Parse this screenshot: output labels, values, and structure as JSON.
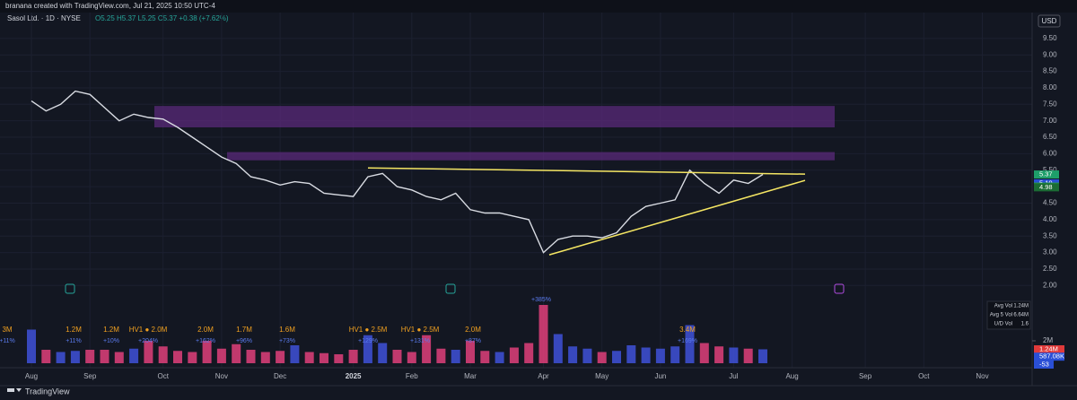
{
  "header": "branana created with TradingView.com, Jul 21, 2025 10:50 UTC-4",
  "currency": "USD",
  "footer": "TradingView",
  "chart_data": {
    "type": "line",
    "title": "Sasol Ltd. · 1D · NYSE",
    "subtitle": "O5.25 H5.37 L5.25 C5.37 +0.38 (+7.62%)",
    "categories": [
      "Aug",
      null,
      null,
      null,
      "Sep",
      null,
      null,
      null,
      null,
      "Oct",
      null,
      null,
      null,
      "Nov",
      null,
      null,
      null,
      "Dec",
      null,
      null,
      null,
      null,
      "2025",
      null,
      null,
      null,
      "Feb",
      null,
      null,
      null,
      "Mar",
      null,
      null,
      null,
      null,
      "Apr",
      null,
      null,
      null,
      "May",
      null,
      null,
      null,
      "Jun",
      null,
      null,
      null,
      null,
      "Jul",
      null,
      null,
      null,
      "Aug",
      null,
      null,
      null,
      null,
      "Sep",
      null,
      null,
      null,
      "Oct",
      null,
      null,
      null,
      "Nov",
      null
    ],
    "series": [
      {
        "color": "#d9dce3",
        "values": [
          7.6,
          7.3,
          7.5,
          7.9,
          7.8,
          7.4,
          7.0,
          7.2,
          7.1,
          7.05,
          6.8,
          6.5,
          6.2,
          5.9,
          5.7,
          5.3,
          5.2,
          5.05,
          5.15,
          5.1,
          4.8,
          4.75,
          4.7,
          5.3,
          5.4,
          5.0,
          4.9,
          4.7,
          4.6,
          4.8,
          4.3,
          4.2,
          4.2,
          4.1,
          4.0,
          3.0,
          3.4,
          3.5,
          3.5,
          3.45,
          3.6,
          4.1,
          4.4,
          4.5,
          4.6,
          5.5,
          5.1,
          4.8,
          5.2,
          5.1,
          5.37,
          null,
          null,
          null,
          null,
          null,
          null,
          null,
          null,
          null,
          null,
          null,
          null,
          null,
          null,
          null,
          null
        ]
      }
    ],
    "ylim": [
      1.6,
      9.85
    ],
    "yticks": [
      {
        "value": 2,
        "label": "2.00"
      },
      {
        "value": 2.5,
        "label": "2.50"
      },
      {
        "value": 3,
        "label": "3.00"
      },
      {
        "value": 3.5,
        "label": "3.50"
      },
      {
        "value": 4,
        "label": "4.00"
      },
      {
        "value": 4.5,
        "label": "4.50"
      },
      {
        "value": 5,
        "label": "5.00"
      },
      {
        "value": 5.5,
        "label": "5.50"
      },
      {
        "value": 6,
        "label": "6.00"
      },
      {
        "value": 6.5,
        "label": "6.50"
      },
      {
        "value": 7,
        "label": "7.00"
      },
      {
        "value": 7.5,
        "label": "7.50"
      },
      {
        "value": 8,
        "label": "8.00"
      },
      {
        "value": 8.5,
        "label": "8.50"
      },
      {
        "value": 9,
        "label": "9.00"
      },
      {
        "value": 9.5,
        "label": "9.50"
      }
    ],
    "grid": true,
    "zones": [
      {
        "values": [
          6.8,
          7.45
        ],
        "color": "#5a2a7a"
      },
      {
        "values": [
          5.8,
          6.05
        ],
        "color": "#5a2a7a"
      }
    ],
    "trendlines": [
      {
        "values": [
          5.57,
          5.38
        ],
        "color": "#f5e663"
      },
      {
        "values": [
          2.93,
          5.19
        ],
        "color": "#f5e663"
      }
    ],
    "price_tags": [
      {
        "value": 5.37,
        "label": "5.37",
        "color": "#1e9e6a"
      },
      {
        "value": 5.1,
        "label": "5.10",
        "color": "#2a4fd6"
      },
      {
        "value": 5.0,
        "label": "5.00",
        "color": "#27a844"
      },
      {
        "value": 4.98,
        "label": "4.98",
        "color": "#1b6b34"
      }
    ],
    "volume": {
      "values": [
        3.0,
        1.2,
        1.0,
        1.1,
        1.2,
        1.2,
        1.0,
        1.3,
        2.0,
        1.5,
        1.1,
        1.0,
        2.0,
        1.3,
        1.7,
        1.2,
        1.0,
        1.1,
        1.6,
        1.0,
        0.9,
        0.8,
        1.2,
        2.5,
        1.8,
        1.2,
        1.0,
        2.5,
        1.3,
        1.2,
        2.0,
        1.1,
        1.0,
        1.4,
        1.8,
        5.2,
        2.6,
        1.5,
        1.3,
        1.0,
        1.1,
        1.6,
        1.4,
        1.3,
        1.5,
        3.4,
        1.8,
        1.5,
        1.4,
        1.3,
        1.24,
        null,
        null,
        null,
        null,
        null,
        null,
        null,
        null,
        null,
        null,
        null,
        null,
        null,
        null,
        null,
        null
      ],
      "up_color": "#3f51d8",
      "down_color": "#e0407a",
      "ylim": [
        0,
        6
      ],
      "yticks": [
        {
          "value": 2,
          "label": "2M"
        }
      ],
      "tags": [
        {
          "value": 1.24,
          "label": "1.24M",
          "color": "#e03a3a"
        },
        {
          "value": 0.58708,
          "label": "587.08K",
          "color": "#2a4fd6"
        }
      ],
      "osc_tag": "-53",
      "annotations": [
        {
          "text": "3M",
          "sub": "+11%"
        },
        {
          "text": "1.2M",
          "sub": "+11%"
        },
        {
          "text": "1.2M",
          "sub": "+10%"
        },
        {
          "text": "HV1 ● 2.0M",
          "sub": "+204%"
        },
        {
          "text": "2.0M",
          "sub": "+162%"
        },
        {
          "text": "1.7M",
          "sub": "+96%"
        },
        {
          "text": "1.6M",
          "sub": "+73%"
        },
        {
          "text": "HV1 ● 2.5M",
          "sub": "+129%"
        },
        {
          "text": "HV1 ● 2.5M",
          "sub": "+131%"
        },
        {
          "text": "2.0M",
          "sub": "+87%"
        },
        {
          "text": "",
          "sub": "+385%"
        },
        {
          "text": "3.4M",
          "sub": "+169%"
        }
      ],
      "stats": [
        {
          "label": "Avg Vol",
          "value": "1.24M"
        },
        {
          "label": "Avg 5 Vol",
          "value": "6.64M"
        },
        {
          "label": "U/D Vol",
          "value": "1.6"
        }
      ]
    }
  }
}
